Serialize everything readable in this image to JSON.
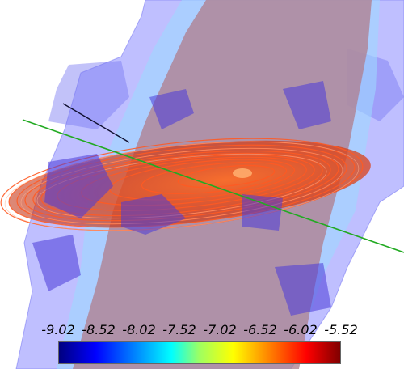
{
  "colorbar": {
    "ticks": [
      "-9.02",
      "-8.52",
      "-8.02",
      "-7.52",
      "-7.02",
      "-6.52",
      "-6.02",
      "-5.52"
    ],
    "min": -9.02,
    "max": -5.52,
    "colors": [
      "#00007f",
      "#0000ff",
      "#00a0ff",
      "#00ffff",
      "#9fff60",
      "#ffff00",
      "#ff8000",
      "#ff0000",
      "#7f0000"
    ]
  },
  "scene": {
    "envelope_color": "#7f7fff",
    "inner_shell_color": "#80ffff",
    "core_color": "#c08080",
    "disk_color": "#e04010",
    "axis_color": "#22aa22"
  }
}
